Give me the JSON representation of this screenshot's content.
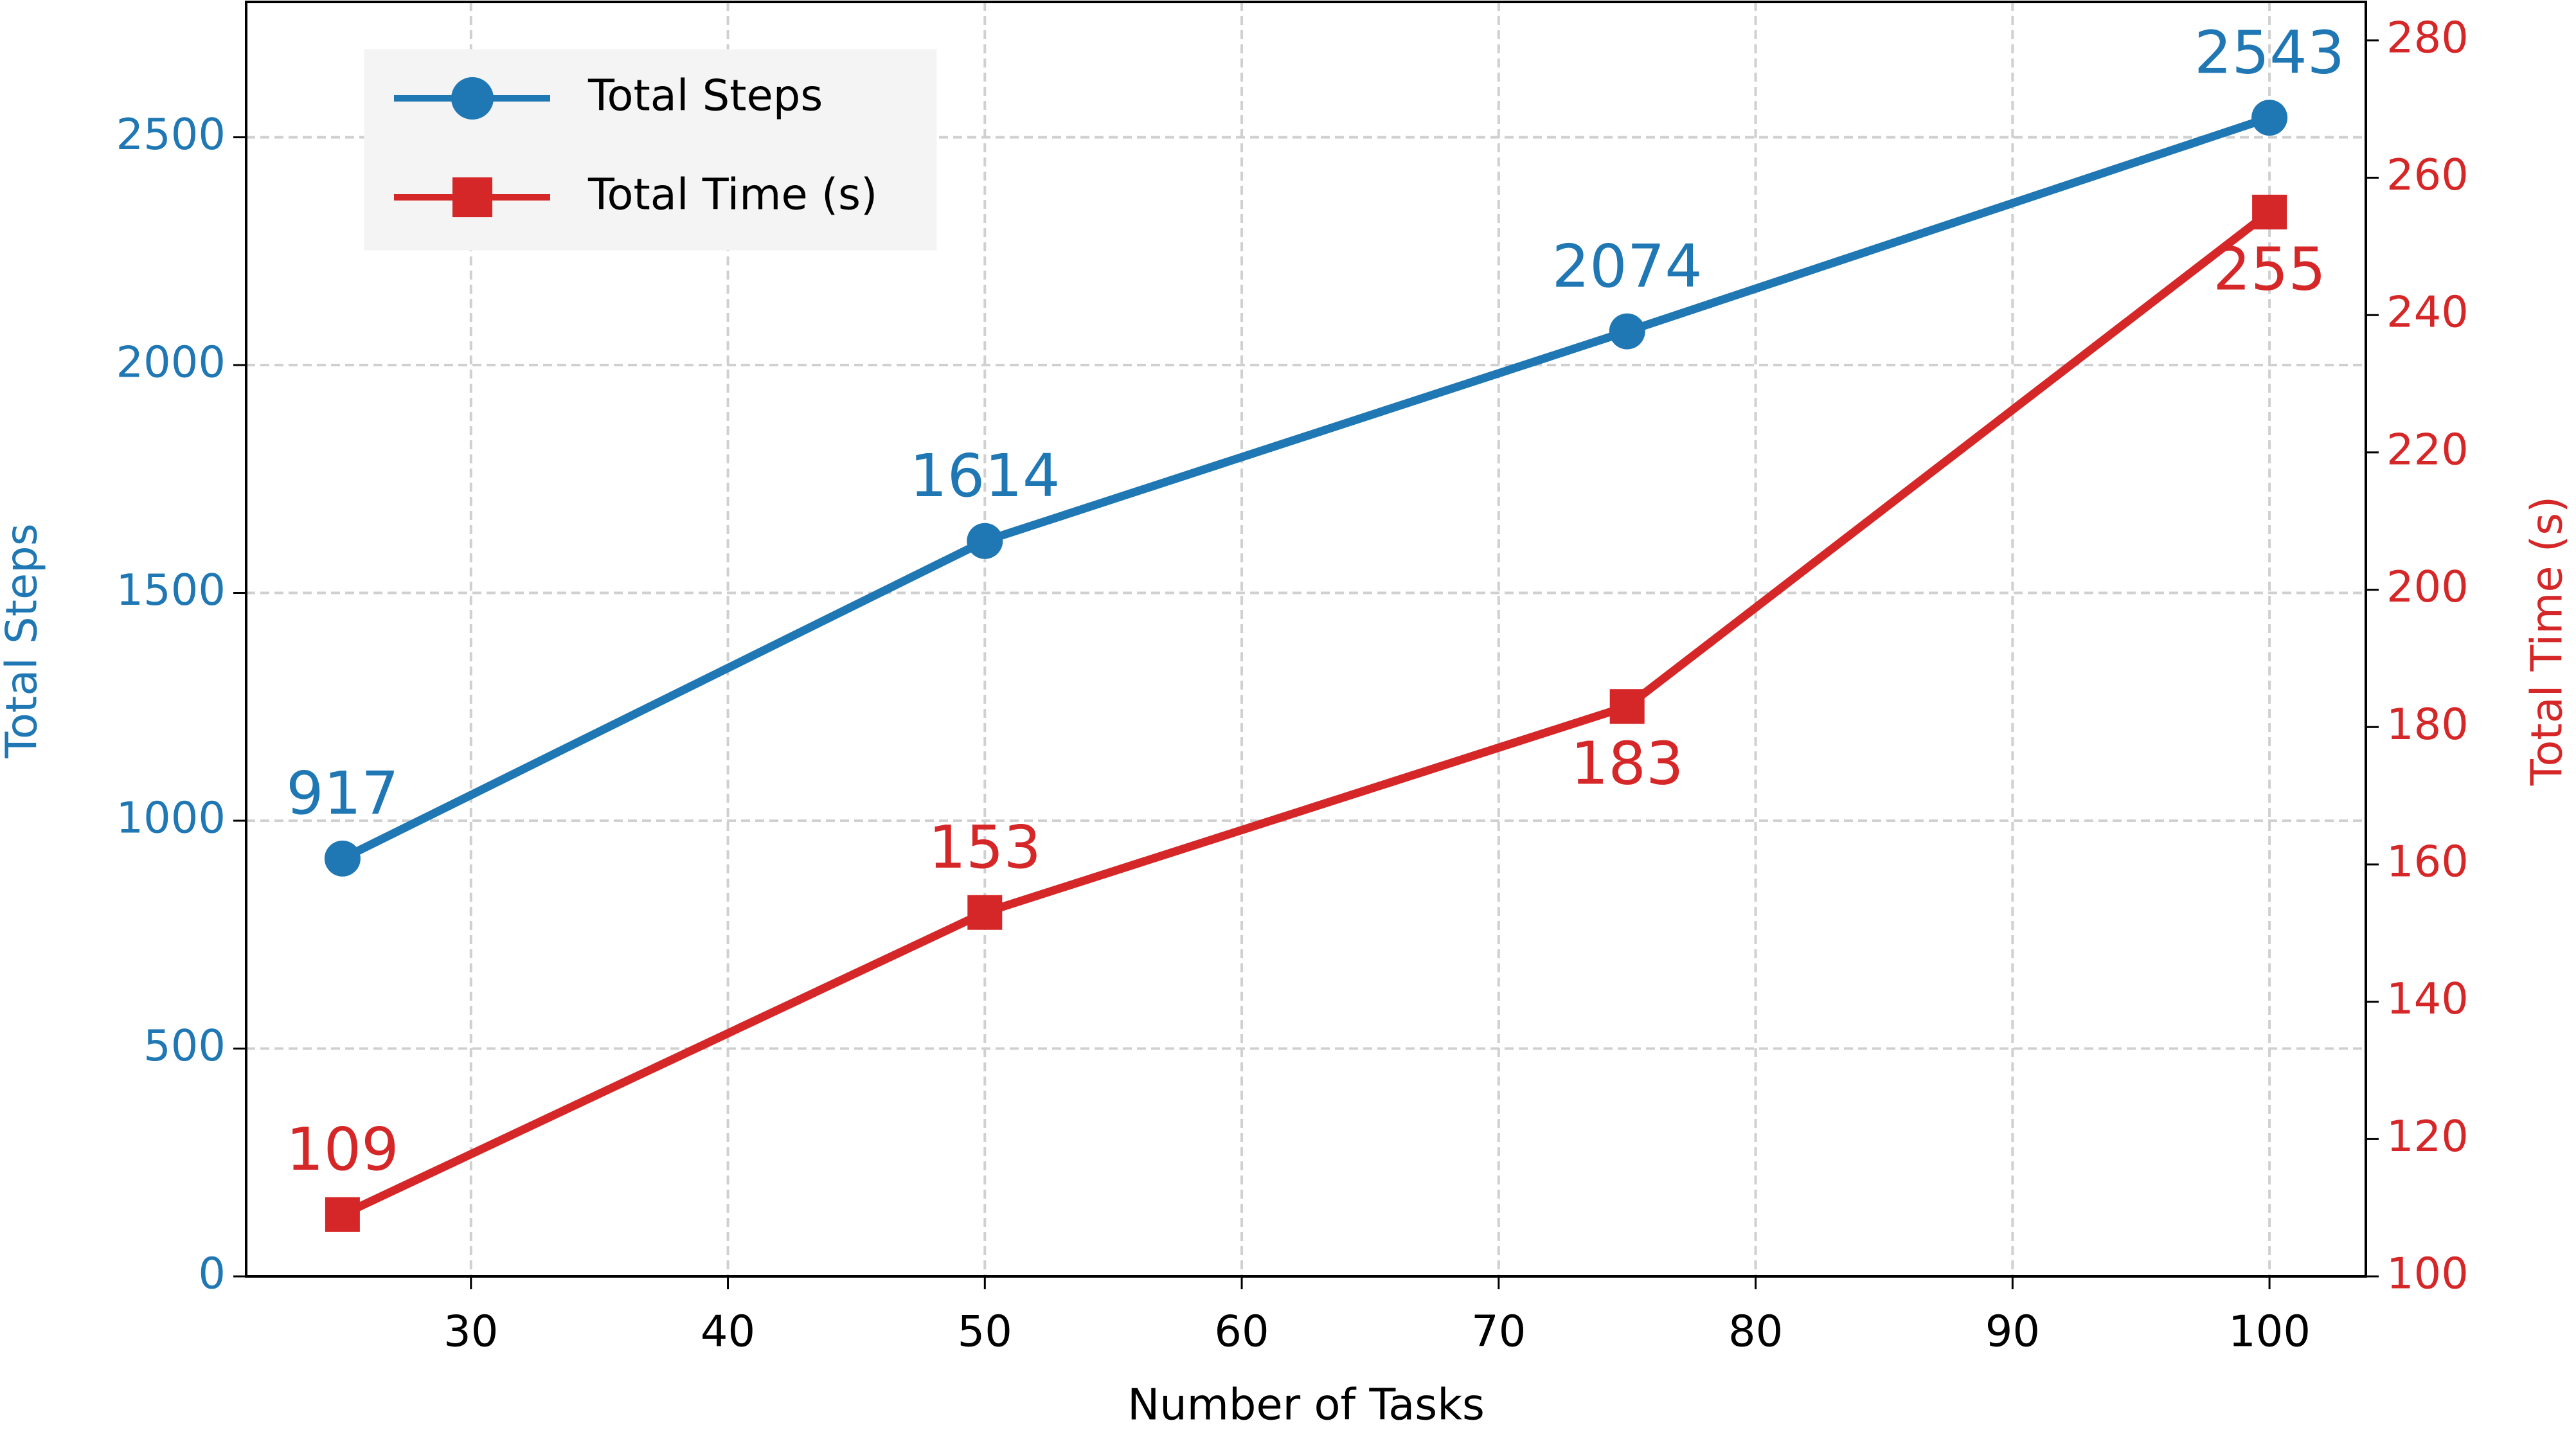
{
  "chart_data": {
    "type": "line",
    "x": [
      25,
      50,
      75,
      100
    ],
    "series": [
      {
        "name": "Total Steps",
        "color": "#1f77b4",
        "marker": "circle",
        "values": [
          917,
          1614,
          2074,
          2543
        ]
      },
      {
        "name": "Total Time (s)",
        "color": "#d62728",
        "marker": "square",
        "axis": "y2",
        "values": [
          109,
          153,
          183,
          255
        ]
      }
    ],
    "xlabel": "Number of Tasks",
    "ylabel": "Total Steps",
    "y2label": "Total Time (s)",
    "xlim": [
      21.25,
      103.75
    ],
    "xticks": [
      30,
      40,
      50,
      60,
      70,
      80,
      90,
      100
    ],
    "ylim": [
      0,
      2797
    ],
    "yticks": [
      0,
      500,
      1000,
      1500,
      2000,
      2500
    ],
    "y2lim": [
      100,
      285.6
    ],
    "y2ticks": [
      100,
      120,
      140,
      160,
      180,
      200,
      220,
      240,
      260,
      280
    ],
    "grid": true,
    "legend": "upper left"
  }
}
